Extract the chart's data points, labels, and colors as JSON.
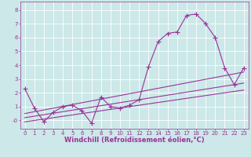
{
  "title": "",
  "xlabel": "Windchill (Refroidissement éolien,°C)",
  "background_color": "#cce8e8",
  "grid_color": "#ffffff",
  "line_color": "#993399",
  "x_ticks": [
    0,
    1,
    2,
    3,
    4,
    5,
    6,
    7,
    8,
    9,
    10,
    11,
    12,
    13,
    14,
    15,
    16,
    17,
    18,
    19,
    20,
    21,
    22,
    23
  ],
  "y_ticks": [
    0,
    1,
    2,
    3,
    4,
    5,
    6,
    7,
    8
  ],
  "ylim": [
    -0.6,
    8.6
  ],
  "xlim": [
    -0.5,
    23.5
  ],
  "line1_x": [
    0,
    1,
    2,
    3,
    4,
    5,
    6,
    7,
    8,
    9,
    10,
    11,
    12,
    13,
    14,
    15,
    16,
    17,
    18,
    19,
    20,
    21,
    22,
    23
  ],
  "line1_y": [
    2.3,
    0.9,
    -0.1,
    0.6,
    1.0,
    1.1,
    0.7,
    -0.2,
    1.7,
    1.0,
    0.9,
    1.1,
    1.5,
    3.9,
    5.7,
    6.3,
    6.4,
    7.6,
    7.7,
    7.0,
    6.0,
    3.8,
    2.6,
    3.8
  ],
  "line2_x": [
    0,
    23
  ],
  "line2_y": [
    0.5,
    3.5
  ],
  "line3_x": [
    0,
    23
  ],
  "line3_y": [
    0.2,
    2.7
  ],
  "line4_x": [
    0,
    23
  ],
  "line4_y": [
    -0.1,
    2.2
  ],
  "marker": "+",
  "markersize": 4,
  "markeredgewidth": 0.8,
  "linewidth": 0.8,
  "tick_fontsize": 5.0,
  "xlabel_fontsize": 6.0
}
